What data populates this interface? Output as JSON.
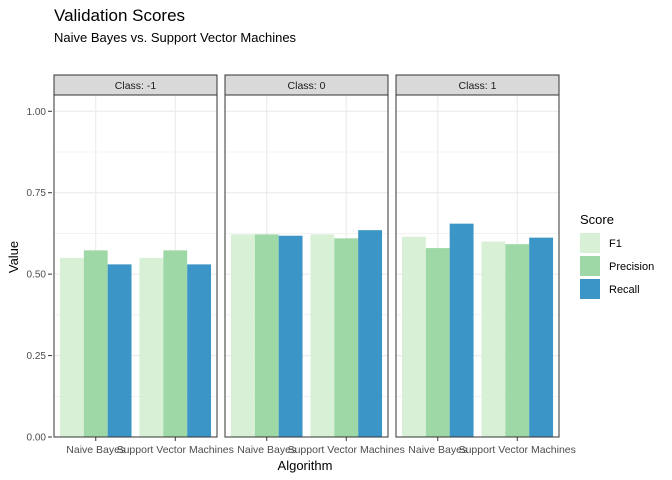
{
  "chart_data": {
    "type": "bar",
    "title": "Validation Scores",
    "subtitle": "Naive Bayes vs. Support Vector Machines",
    "xlabel": "Algorithm",
    "ylabel": "Value",
    "ylim": [
      0,
      1.05
    ],
    "yticks": [
      "0.00",
      "0.25",
      "0.50",
      "0.75",
      "1.00"
    ],
    "ytick_values": [
      0,
      0.25,
      0.5,
      0.75,
      1.0
    ],
    "grid": true,
    "legend": {
      "title": "Score",
      "placement": "right"
    },
    "categories": [
      "Naive Bayes",
      "Support Vector Machines"
    ],
    "facets": [
      {
        "label": "Class: -1",
        "series": [
          {
            "name": "F1",
            "color": "#d8f0d6",
            "values": [
              0.55,
              0.55
            ]
          },
          {
            "name": "Precision",
            "color": "#9dd8a6",
            "values": [
              0.573,
              0.573
            ]
          },
          {
            "name": "Recall",
            "color": "#3b95c6",
            "values": [
              0.53,
              0.53
            ]
          }
        ]
      },
      {
        "label": "Class: 0",
        "series": [
          {
            "name": "F1",
            "color": "#d8f0d6",
            "values": [
              0.622,
              0.622
            ]
          },
          {
            "name": "Precision",
            "color": "#9dd8a6",
            "values": [
              0.622,
              0.61
            ]
          },
          {
            "name": "Recall",
            "color": "#3b95c6",
            "values": [
              0.618,
              0.635
            ]
          }
        ]
      },
      {
        "label": "Class: 1",
        "series": [
          {
            "name": "F1",
            "color": "#d8f0d6",
            "values": [
              0.615,
              0.6
            ]
          },
          {
            "name": "Precision",
            "color": "#9dd8a6",
            "values": [
              0.58,
              0.592
            ]
          },
          {
            "name": "Recall",
            "color": "#3b95c6",
            "values": [
              0.655,
              0.612
            ]
          }
        ]
      }
    ]
  }
}
